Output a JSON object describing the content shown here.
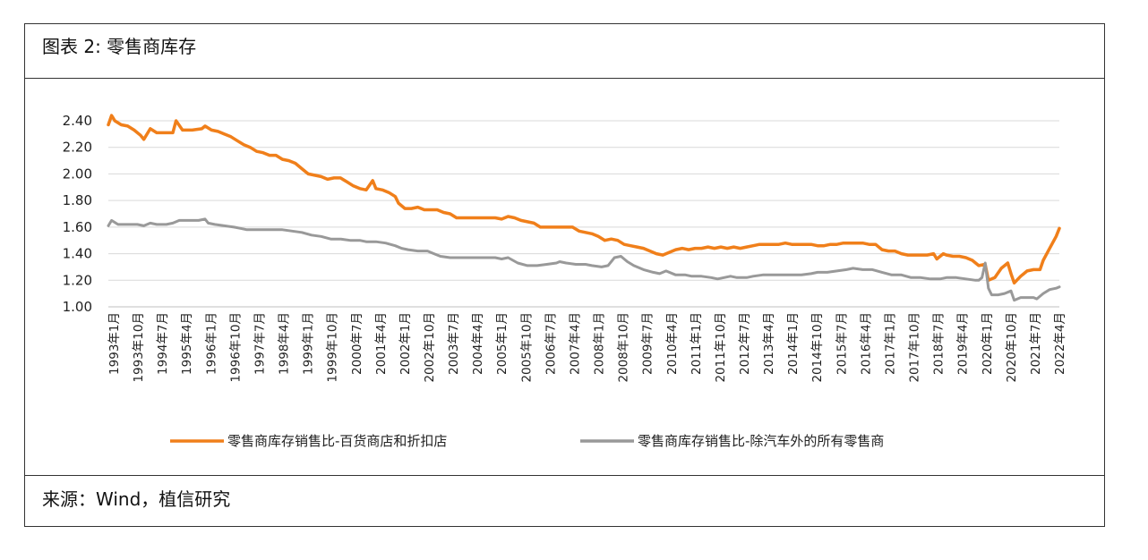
{
  "figure": {
    "title": "图表 2: 零售商库存",
    "source": "来源：Wind，植信研究"
  },
  "chart_data": {
    "type": "line",
    "ylim": [
      1.0,
      2.4
    ],
    "yticks": [
      "2.40",
      "2.20",
      "2.00",
      "1.80",
      "1.60",
      "1.40",
      "1.20",
      "1.00"
    ],
    "xticks": [
      "1993年1月",
      "1993年10月",
      "1994年7月",
      "1995年4月",
      "1996年1月",
      "1996年10月",
      "1997年7月",
      "1998年4月",
      "1999年1月",
      "1999年10月",
      "2000年7月",
      "2001年4月",
      "2002年1月",
      "2002年10月",
      "2003年7月",
      "2004年4月",
      "2005年1月",
      "2005年10月",
      "2006年7月",
      "2007年4月",
      "2008年1月",
      "2008年10月",
      "2009年7月",
      "2010年4月",
      "2011年1月",
      "2011年10月",
      "2012年7月",
      "2013年4月",
      "2014年1月",
      "2014年10月",
      "2015年7月",
      "2016年4月",
      "2017年1月",
      "2017年10月",
      "2018年7月",
      "2019年4月",
      "2020年1月",
      "2020年10月",
      "2021年7月",
      "2022年4月"
    ],
    "grid": "horizontal",
    "legend_position": "bottom",
    "series": [
      {
        "name": "零售商库存销售比-百货商店和折扣店",
        "color": "#F07F1A",
        "points": [
          [
            1993.0,
            2.37
          ],
          [
            1993.1,
            2.44
          ],
          [
            1993.2,
            2.4
          ],
          [
            1993.4,
            2.37
          ],
          [
            1993.6,
            2.36
          ],
          [
            1993.8,
            2.33
          ],
          [
            1994.0,
            2.29
          ],
          [
            1994.1,
            2.26
          ],
          [
            1994.3,
            2.34
          ],
          [
            1994.5,
            2.31
          ],
          [
            1994.7,
            2.31
          ],
          [
            1994.9,
            2.31
          ],
          [
            1995.0,
            2.31
          ],
          [
            1995.1,
            2.4
          ],
          [
            1995.3,
            2.33
          ],
          [
            1995.6,
            2.33
          ],
          [
            1995.9,
            2.34
          ],
          [
            1996.0,
            2.36
          ],
          [
            1996.2,
            2.33
          ],
          [
            1996.4,
            2.32
          ],
          [
            1996.6,
            2.3
          ],
          [
            1996.8,
            2.28
          ],
          [
            1997.0,
            2.25
          ],
          [
            1997.2,
            2.22
          ],
          [
            1997.4,
            2.2
          ],
          [
            1997.6,
            2.17
          ],
          [
            1997.8,
            2.16
          ],
          [
            1998.0,
            2.14
          ],
          [
            1998.2,
            2.14
          ],
          [
            1998.4,
            2.11
          ],
          [
            1998.6,
            2.1
          ],
          [
            1998.8,
            2.08
          ],
          [
            1999.0,
            2.04
          ],
          [
            1999.2,
            2.0
          ],
          [
            1999.4,
            1.99
          ],
          [
            1999.6,
            1.98
          ],
          [
            1999.8,
            1.96
          ],
          [
            2000.0,
            1.97
          ],
          [
            2000.2,
            1.97
          ],
          [
            2000.4,
            1.94
          ],
          [
            2000.6,
            1.91
          ],
          [
            2000.8,
            1.89
          ],
          [
            2001.0,
            1.88
          ],
          [
            2001.2,
            1.95
          ],
          [
            2001.3,
            1.89
          ],
          [
            2001.5,
            1.88
          ],
          [
            2001.7,
            1.86
          ],
          [
            2001.9,
            1.83
          ],
          [
            2002.0,
            1.78
          ],
          [
            2002.2,
            1.74
          ],
          [
            2002.4,
            1.74
          ],
          [
            2002.6,
            1.75
          ],
          [
            2002.8,
            1.73
          ],
          [
            2003.0,
            1.73
          ],
          [
            2003.2,
            1.73
          ],
          [
            2003.4,
            1.71
          ],
          [
            2003.6,
            1.7
          ],
          [
            2003.8,
            1.67
          ],
          [
            2004.0,
            1.67
          ],
          [
            2004.2,
            1.67
          ],
          [
            2004.4,
            1.67
          ],
          [
            2004.6,
            1.67
          ],
          [
            2004.8,
            1.67
          ],
          [
            2005.0,
            1.67
          ],
          [
            2005.2,
            1.66
          ],
          [
            2005.4,
            1.68
          ],
          [
            2005.6,
            1.67
          ],
          [
            2005.8,
            1.65
          ],
          [
            2006.0,
            1.64
          ],
          [
            2006.2,
            1.63
          ],
          [
            2006.4,
            1.6
          ],
          [
            2006.6,
            1.6
          ],
          [
            2006.8,
            1.6
          ],
          [
            2007.0,
            1.6
          ],
          [
            2007.2,
            1.6
          ],
          [
            2007.4,
            1.6
          ],
          [
            2007.6,
            1.57
          ],
          [
            2007.8,
            1.56
          ],
          [
            2008.0,
            1.55
          ],
          [
            2008.2,
            1.53
          ],
          [
            2008.4,
            1.5
          ],
          [
            2008.6,
            1.51
          ],
          [
            2008.8,
            1.5
          ],
          [
            2009.0,
            1.47
          ],
          [
            2009.2,
            1.46
          ],
          [
            2009.4,
            1.45
          ],
          [
            2009.6,
            1.44
          ],
          [
            2009.8,
            1.42
          ],
          [
            2010.0,
            1.4
          ],
          [
            2010.2,
            1.39
          ],
          [
            2010.4,
            1.41
          ],
          [
            2010.6,
            1.43
          ],
          [
            2010.8,
            1.44
          ],
          [
            2011.0,
            1.43
          ],
          [
            2011.2,
            1.44
          ],
          [
            2011.4,
            1.44
          ],
          [
            2011.6,
            1.45
          ],
          [
            2011.8,
            1.44
          ],
          [
            2012.0,
            1.45
          ],
          [
            2012.2,
            1.44
          ],
          [
            2012.4,
            1.45
          ],
          [
            2012.6,
            1.44
          ],
          [
            2012.8,
            1.45
          ],
          [
            2013.0,
            1.46
          ],
          [
            2013.2,
            1.47
          ],
          [
            2013.4,
            1.47
          ],
          [
            2013.6,
            1.47
          ],
          [
            2013.8,
            1.47
          ],
          [
            2014.0,
            1.48
          ],
          [
            2014.2,
            1.47
          ],
          [
            2014.4,
            1.47
          ],
          [
            2014.6,
            1.47
          ],
          [
            2014.8,
            1.47
          ],
          [
            2015.0,
            1.46
          ],
          [
            2015.2,
            1.46
          ],
          [
            2015.4,
            1.47
          ],
          [
            2015.6,
            1.47
          ],
          [
            2015.8,
            1.48
          ],
          [
            2016.0,
            1.48
          ],
          [
            2016.2,
            1.48
          ],
          [
            2016.4,
            1.48
          ],
          [
            2016.6,
            1.47
          ],
          [
            2016.8,
            1.47
          ],
          [
            2017.0,
            1.43
          ],
          [
            2017.2,
            1.42
          ],
          [
            2017.4,
            1.42
          ],
          [
            2017.6,
            1.4
          ],
          [
            2017.8,
            1.39
          ],
          [
            2018.0,
            1.39
          ],
          [
            2018.2,
            1.39
          ],
          [
            2018.4,
            1.39
          ],
          [
            2018.6,
            1.4
          ],
          [
            2018.7,
            1.36
          ],
          [
            2018.9,
            1.4
          ],
          [
            2019.0,
            1.39
          ],
          [
            2019.2,
            1.38
          ],
          [
            2019.4,
            1.38
          ],
          [
            2019.6,
            1.37
          ],
          [
            2019.8,
            1.35
          ],
          [
            2020.0,
            1.31
          ],
          [
            2020.2,
            1.32
          ],
          [
            2020.3,
            1.2
          ],
          [
            2020.5,
            1.22
          ],
          [
            2020.7,
            1.29
          ],
          [
            2020.9,
            1.33
          ],
          [
            2021.0,
            1.25
          ],
          [
            2021.1,
            1.18
          ],
          [
            2021.3,
            1.23
          ],
          [
            2021.5,
            1.27
          ],
          [
            2021.7,
            1.28
          ],
          [
            2021.9,
            1.28
          ],
          [
            2022.0,
            1.35
          ],
          [
            2022.2,
            1.44
          ],
          [
            2022.4,
            1.53
          ],
          [
            2022.5,
            1.59
          ]
        ]
      },
      {
        "name": "零售商库存销售比-除汽车外的所有零售商",
        "color": "#999999",
        "points": [
          [
            1993.0,
            1.61
          ],
          [
            1993.1,
            1.65
          ],
          [
            1993.3,
            1.62
          ],
          [
            1993.6,
            1.62
          ],
          [
            1993.9,
            1.62
          ],
          [
            1994.1,
            1.61
          ],
          [
            1994.3,
            1.63
          ],
          [
            1994.5,
            1.62
          ],
          [
            1994.8,
            1.62
          ],
          [
            1995.0,
            1.63
          ],
          [
            1995.2,
            1.65
          ],
          [
            1995.5,
            1.65
          ],
          [
            1995.8,
            1.65
          ],
          [
            1996.0,
            1.66
          ],
          [
            1996.1,
            1.63
          ],
          [
            1996.3,
            1.62
          ],
          [
            1996.6,
            1.61
          ],
          [
            1996.9,
            1.6
          ],
          [
            1997.1,
            1.59
          ],
          [
            1997.3,
            1.58
          ],
          [
            1997.6,
            1.58
          ],
          [
            1997.9,
            1.58
          ],
          [
            1998.1,
            1.58
          ],
          [
            1998.4,
            1.58
          ],
          [
            1998.7,
            1.57
          ],
          [
            1999.0,
            1.56
          ],
          [
            1999.3,
            1.54
          ],
          [
            1999.6,
            1.53
          ],
          [
            1999.9,
            1.51
          ],
          [
            2000.2,
            1.51
          ],
          [
            2000.5,
            1.5
          ],
          [
            2000.8,
            1.5
          ],
          [
            2001.0,
            1.49
          ],
          [
            2001.3,
            1.49
          ],
          [
            2001.6,
            1.48
          ],
          [
            2001.9,
            1.46
          ],
          [
            2002.1,
            1.44
          ],
          [
            2002.3,
            1.43
          ],
          [
            2002.6,
            1.42
          ],
          [
            2002.9,
            1.42
          ],
          [
            2003.1,
            1.4
          ],
          [
            2003.3,
            1.38
          ],
          [
            2003.6,
            1.37
          ],
          [
            2003.9,
            1.37
          ],
          [
            2004.1,
            1.37
          ],
          [
            2004.4,
            1.37
          ],
          [
            2004.7,
            1.37
          ],
          [
            2005.0,
            1.37
          ],
          [
            2005.2,
            1.36
          ],
          [
            2005.4,
            1.37
          ],
          [
            2005.7,
            1.33
          ],
          [
            2006.0,
            1.31
          ],
          [
            2006.3,
            1.31
          ],
          [
            2006.6,
            1.32
          ],
          [
            2006.9,
            1.33
          ],
          [
            2007.0,
            1.34
          ],
          [
            2007.2,
            1.33
          ],
          [
            2007.5,
            1.32
          ],
          [
            2007.8,
            1.32
          ],
          [
            2008.0,
            1.31
          ],
          [
            2008.3,
            1.3
          ],
          [
            2008.5,
            1.31
          ],
          [
            2008.7,
            1.37
          ],
          [
            2008.9,
            1.38
          ],
          [
            2009.1,
            1.34
          ],
          [
            2009.3,
            1.31
          ],
          [
            2009.6,
            1.28
          ],
          [
            2009.9,
            1.26
          ],
          [
            2010.1,
            1.25
          ],
          [
            2010.3,
            1.27
          ],
          [
            2010.6,
            1.24
          ],
          [
            2010.9,
            1.24
          ],
          [
            2011.1,
            1.23
          ],
          [
            2011.4,
            1.23
          ],
          [
            2011.7,
            1.22
          ],
          [
            2011.9,
            1.21
          ],
          [
            2012.1,
            1.22
          ],
          [
            2012.3,
            1.23
          ],
          [
            2012.5,
            1.22
          ],
          [
            2012.8,
            1.22
          ],
          [
            2013.0,
            1.23
          ],
          [
            2013.3,
            1.24
          ],
          [
            2013.6,
            1.24
          ],
          [
            2013.9,
            1.24
          ],
          [
            2014.2,
            1.24
          ],
          [
            2014.5,
            1.24
          ],
          [
            2014.8,
            1.25
          ],
          [
            2015.0,
            1.26
          ],
          [
            2015.3,
            1.26
          ],
          [
            2015.6,
            1.27
          ],
          [
            2015.9,
            1.28
          ],
          [
            2016.1,
            1.29
          ],
          [
            2016.4,
            1.28
          ],
          [
            2016.7,
            1.28
          ],
          [
            2017.0,
            1.26
          ],
          [
            2017.3,
            1.24
          ],
          [
            2017.6,
            1.24
          ],
          [
            2017.9,
            1.22
          ],
          [
            2018.2,
            1.22
          ],
          [
            2018.5,
            1.21
          ],
          [
            2018.8,
            1.21
          ],
          [
            2019.0,
            1.22
          ],
          [
            2019.3,
            1.22
          ],
          [
            2019.6,
            1.21
          ],
          [
            2019.9,
            1.2
          ],
          [
            2020.0,
            1.2
          ],
          [
            2020.1,
            1.22
          ],
          [
            2020.2,
            1.33
          ],
          [
            2020.3,
            1.14
          ],
          [
            2020.4,
            1.09
          ],
          [
            2020.6,
            1.09
          ],
          [
            2020.8,
            1.1
          ],
          [
            2021.0,
            1.12
          ],
          [
            2021.1,
            1.05
          ],
          [
            2021.3,
            1.07
          ],
          [
            2021.5,
            1.07
          ],
          [
            2021.7,
            1.07
          ],
          [
            2021.8,
            1.06
          ],
          [
            2022.0,
            1.1
          ],
          [
            2022.2,
            1.13
          ],
          [
            2022.4,
            1.14
          ],
          [
            2022.5,
            1.15
          ]
        ]
      }
    ]
  }
}
